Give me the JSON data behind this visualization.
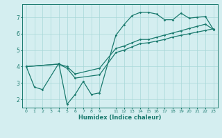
{
  "xlabel": "Humidex (Indice chaleur)",
  "background_color": "#d4eef0",
  "grid_color": "#a8d8d8",
  "line_color": "#1a7a6e",
  "xlim": [
    -0.5,
    23.5
  ],
  "ylim": [
    1.5,
    7.8
  ],
  "yticks": [
    2,
    3,
    4,
    5,
    6,
    7
  ],
  "xtick_positions": [
    0,
    1,
    2,
    3,
    4,
    5,
    6,
    7,
    8,
    9,
    11,
    12,
    13,
    14,
    15,
    16,
    17,
    18,
    19,
    20,
    21,
    22,
    23
  ],
  "xtick_labels": [
    "0",
    "1",
    "2",
    "3",
    "4",
    "5",
    "6",
    "7",
    "8",
    "9",
    "11",
    "12",
    "13",
    "14",
    "15",
    "16",
    "17",
    "18",
    "19",
    "20",
    "21",
    "22",
    "23"
  ],
  "line1_x": [
    0,
    1,
    2,
    4,
    5,
    6,
    7,
    8,
    9,
    11,
    12,
    13,
    14,
    15,
    16,
    17,
    18,
    19,
    20,
    21,
    22,
    23
  ],
  "line1_y": [
    4.0,
    2.75,
    2.6,
    4.2,
    1.7,
    2.3,
    3.1,
    2.3,
    2.4,
    5.9,
    6.55,
    7.1,
    7.3,
    7.3,
    7.2,
    6.85,
    6.85,
    7.25,
    6.95,
    7.0,
    7.05,
    6.25
  ],
  "line2_x": [
    0,
    4,
    5,
    6,
    9,
    11,
    12,
    13,
    14,
    15,
    16,
    17,
    18,
    19,
    20,
    21,
    22,
    23
  ],
  "line2_y": [
    4.0,
    4.15,
    3.9,
    3.3,
    3.5,
    4.85,
    5.0,
    5.2,
    5.4,
    5.45,
    5.55,
    5.65,
    5.8,
    5.9,
    6.0,
    6.1,
    6.2,
    6.3
  ],
  "line3_x": [
    0,
    4,
    5,
    6,
    9,
    11,
    12,
    13,
    14,
    15,
    16,
    17,
    18,
    19,
    20,
    21,
    22,
    23
  ],
  "line3_y": [
    4.0,
    4.15,
    4.0,
    3.55,
    3.9,
    5.1,
    5.25,
    5.45,
    5.65,
    5.65,
    5.78,
    5.92,
    6.05,
    6.18,
    6.32,
    6.45,
    6.58,
    6.25
  ]
}
